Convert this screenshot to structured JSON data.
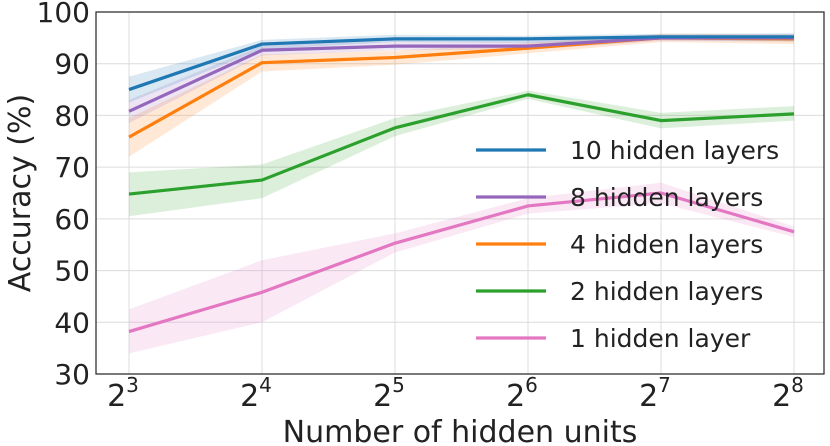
{
  "chart_data": {
    "type": "line",
    "title": "",
    "xlabel": "Number of hidden units",
    "ylabel": "Accuracy (%)",
    "x_scale": "log2",
    "x": [
      8,
      16,
      32,
      64,
      128,
      256
    ],
    "x_tick_base": "2",
    "x_tick_exponents": [
      "3",
      "4",
      "5",
      "6",
      "7",
      "8"
    ],
    "ylim": [
      30,
      100
    ],
    "y_ticks": [
      "30",
      "40",
      "50",
      "60",
      "70",
      "80",
      "90",
      "100"
    ],
    "grid": true,
    "legend_position": "center-right",
    "series": [
      {
        "name": "10 hidden layers",
        "color": "#1f77b4",
        "values": [
          85.0,
          93.8,
          94.8,
          94.8,
          95.2,
          95.2
        ],
        "lower": [
          82.5,
          92.8,
          94.2,
          94.0,
          94.6,
          94.3
        ],
        "upper": [
          87.5,
          94.6,
          95.6,
          95.4,
          95.8,
          95.9
        ]
      },
      {
        "name": "8 hidden layers",
        "color": "#9467bd",
        "values": [
          80.8,
          92.6,
          93.4,
          93.4,
          95.0,
          95.0
        ],
        "lower": [
          78.5,
          91.6,
          92.6,
          92.7,
          94.4,
          94.3
        ],
        "upper": [
          83.0,
          93.5,
          94.4,
          94.3,
          95.6,
          95.7
        ]
      },
      {
        "name": "4 hidden layers",
        "color": "#ff7f0e",
        "values": [
          75.8,
          90.2,
          91.2,
          93.0,
          95.0,
          94.8
        ],
        "lower": [
          72.0,
          88.5,
          89.8,
          92.0,
          94.2,
          93.8
        ],
        "upper": [
          79.5,
          91.8,
          92.5,
          94.0,
          95.8,
          95.7
        ]
      },
      {
        "name": "2 hidden layers",
        "color": "#2ca02c",
        "values": [
          64.8,
          67.5,
          77.6,
          84.0,
          79.0,
          80.3
        ],
        "lower": [
          60.5,
          64.0,
          76.0,
          83.2,
          77.5,
          79.0
        ],
        "upper": [
          69.0,
          70.5,
          79.5,
          84.8,
          80.5,
          81.8
        ]
      },
      {
        "name": "1 hidden layer",
        "color": "#e377c2",
        "values": [
          38.2,
          45.8,
          55.3,
          62.5,
          65.0,
          57.5
        ],
        "lower": [
          34.0,
          40.0,
          53.5,
          61.0,
          63.0,
          56.5
        ],
        "upper": [
          42.5,
          52.0,
          57.2,
          64.0,
          67.0,
          58.5
        ]
      }
    ]
  }
}
